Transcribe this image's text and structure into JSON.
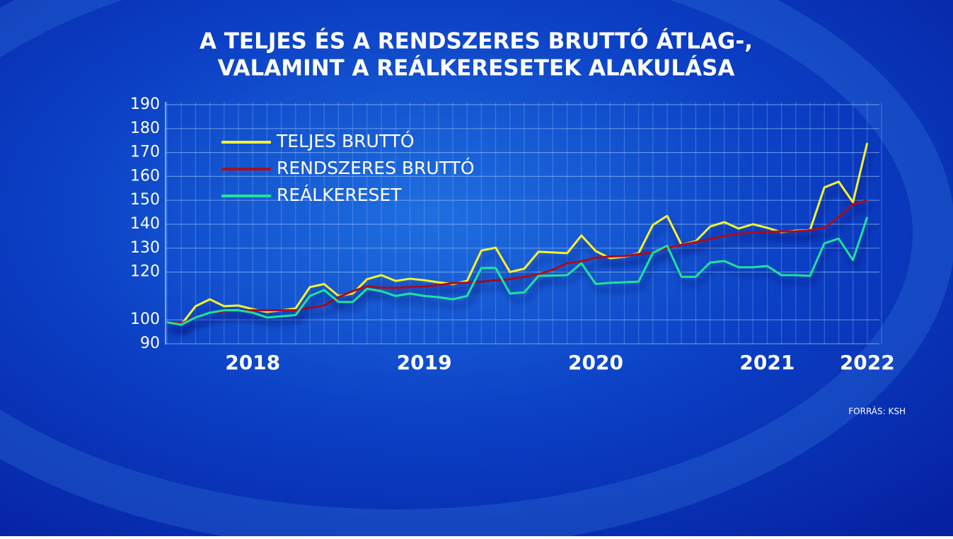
{
  "chart_data": {
    "type": "line",
    "title": [
      "A TELJES ÉS A RENDSZERES BRUTTÓ ÁTLAG-,",
      "VALAMINT A REÁLKERESETEK ALAKULÁSA"
    ],
    "source": "FORRÁS: KSH",
    "categories": [
      null,
      null,
      null,
      null,
      null,
      null,
      "2018",
      null,
      null,
      null,
      null,
      null,
      null,
      null,
      null,
      null,
      null,
      null,
      "2019",
      null,
      null,
      null,
      null,
      null,
      null,
      null,
      null,
      null,
      null,
      null,
      "2020",
      null,
      null,
      null,
      null,
      null,
      null,
      null,
      null,
      null,
      null,
      null,
      "2021",
      null,
      null,
      null,
      null,
      null,
      null,
      "2022"
    ],
    "series": [
      {
        "name": "TELJES BRUTTÓ",
        "color": "#f4f22c",
        "values": [
          99,
          98,
          105.7,
          108.6,
          105.7,
          106,
          104.5,
          103.3,
          104,
          104.8,
          113.7,
          115,
          110,
          111,
          117,
          118.7,
          116.3,
          117.2,
          116.6,
          115.7,
          115,
          116.3,
          129,
          130.2,
          120,
          121.4,
          128.5,
          128.2,
          127.9,
          135.3,
          128.8,
          125.8,
          126.4,
          127.9,
          139.7,
          143.5,
          131.4,
          132.9,
          139,
          140.9,
          138.2,
          140,
          138.5,
          136.7,
          137.3,
          137.6,
          155.4,
          157.8,
          149.2,
          174
        ]
      },
      {
        "name": "RENDSZERES BRUTTÓ",
        "color": "#a8101c",
        "values": [
          99,
          98.5,
          101,
          103,
          103.5,
          104,
          104,
          104,
          104,
          104,
          105,
          106,
          109.5,
          112,
          114,
          113.5,
          113.4,
          113.7,
          114,
          114.5,
          115.4,
          115.5,
          116,
          116.5,
          117,
          118,
          119,
          121,
          123.7,
          124.5,
          126,
          126.5,
          126.7,
          127.5,
          128.2,
          130,
          131.4,
          132.5,
          133.8,
          135,
          136,
          136.5,
          136.8,
          137,
          137,
          137.5,
          138.5,
          143,
          148.3,
          150
        ]
      },
      {
        "name": "REÁLKERESET",
        "color": "#1fe39a",
        "values": [
          99,
          98,
          101,
          103,
          104,
          104,
          103,
          101,
          101.5,
          102,
          110,
          112.5,
          107.5,
          107.5,
          113,
          112,
          110,
          111,
          110,
          109.5,
          108.6,
          110,
          121.7,
          121.7,
          111,
          111.5,
          118.4,
          118.5,
          118.7,
          123.7,
          115,
          115.5,
          115.7,
          116,
          128,
          131,
          118,
          118,
          124,
          124.6,
          122,
          122,
          122.5,
          118.7,
          118.7,
          118.4,
          132,
          134,
          125,
          143
        ]
      }
    ],
    "ylim": [
      90,
      190
    ],
    "yticks": [
      190,
      180,
      170,
      160,
      150,
      140,
      130,
      120,
      100,
      90
    ],
    "grid": true
  }
}
